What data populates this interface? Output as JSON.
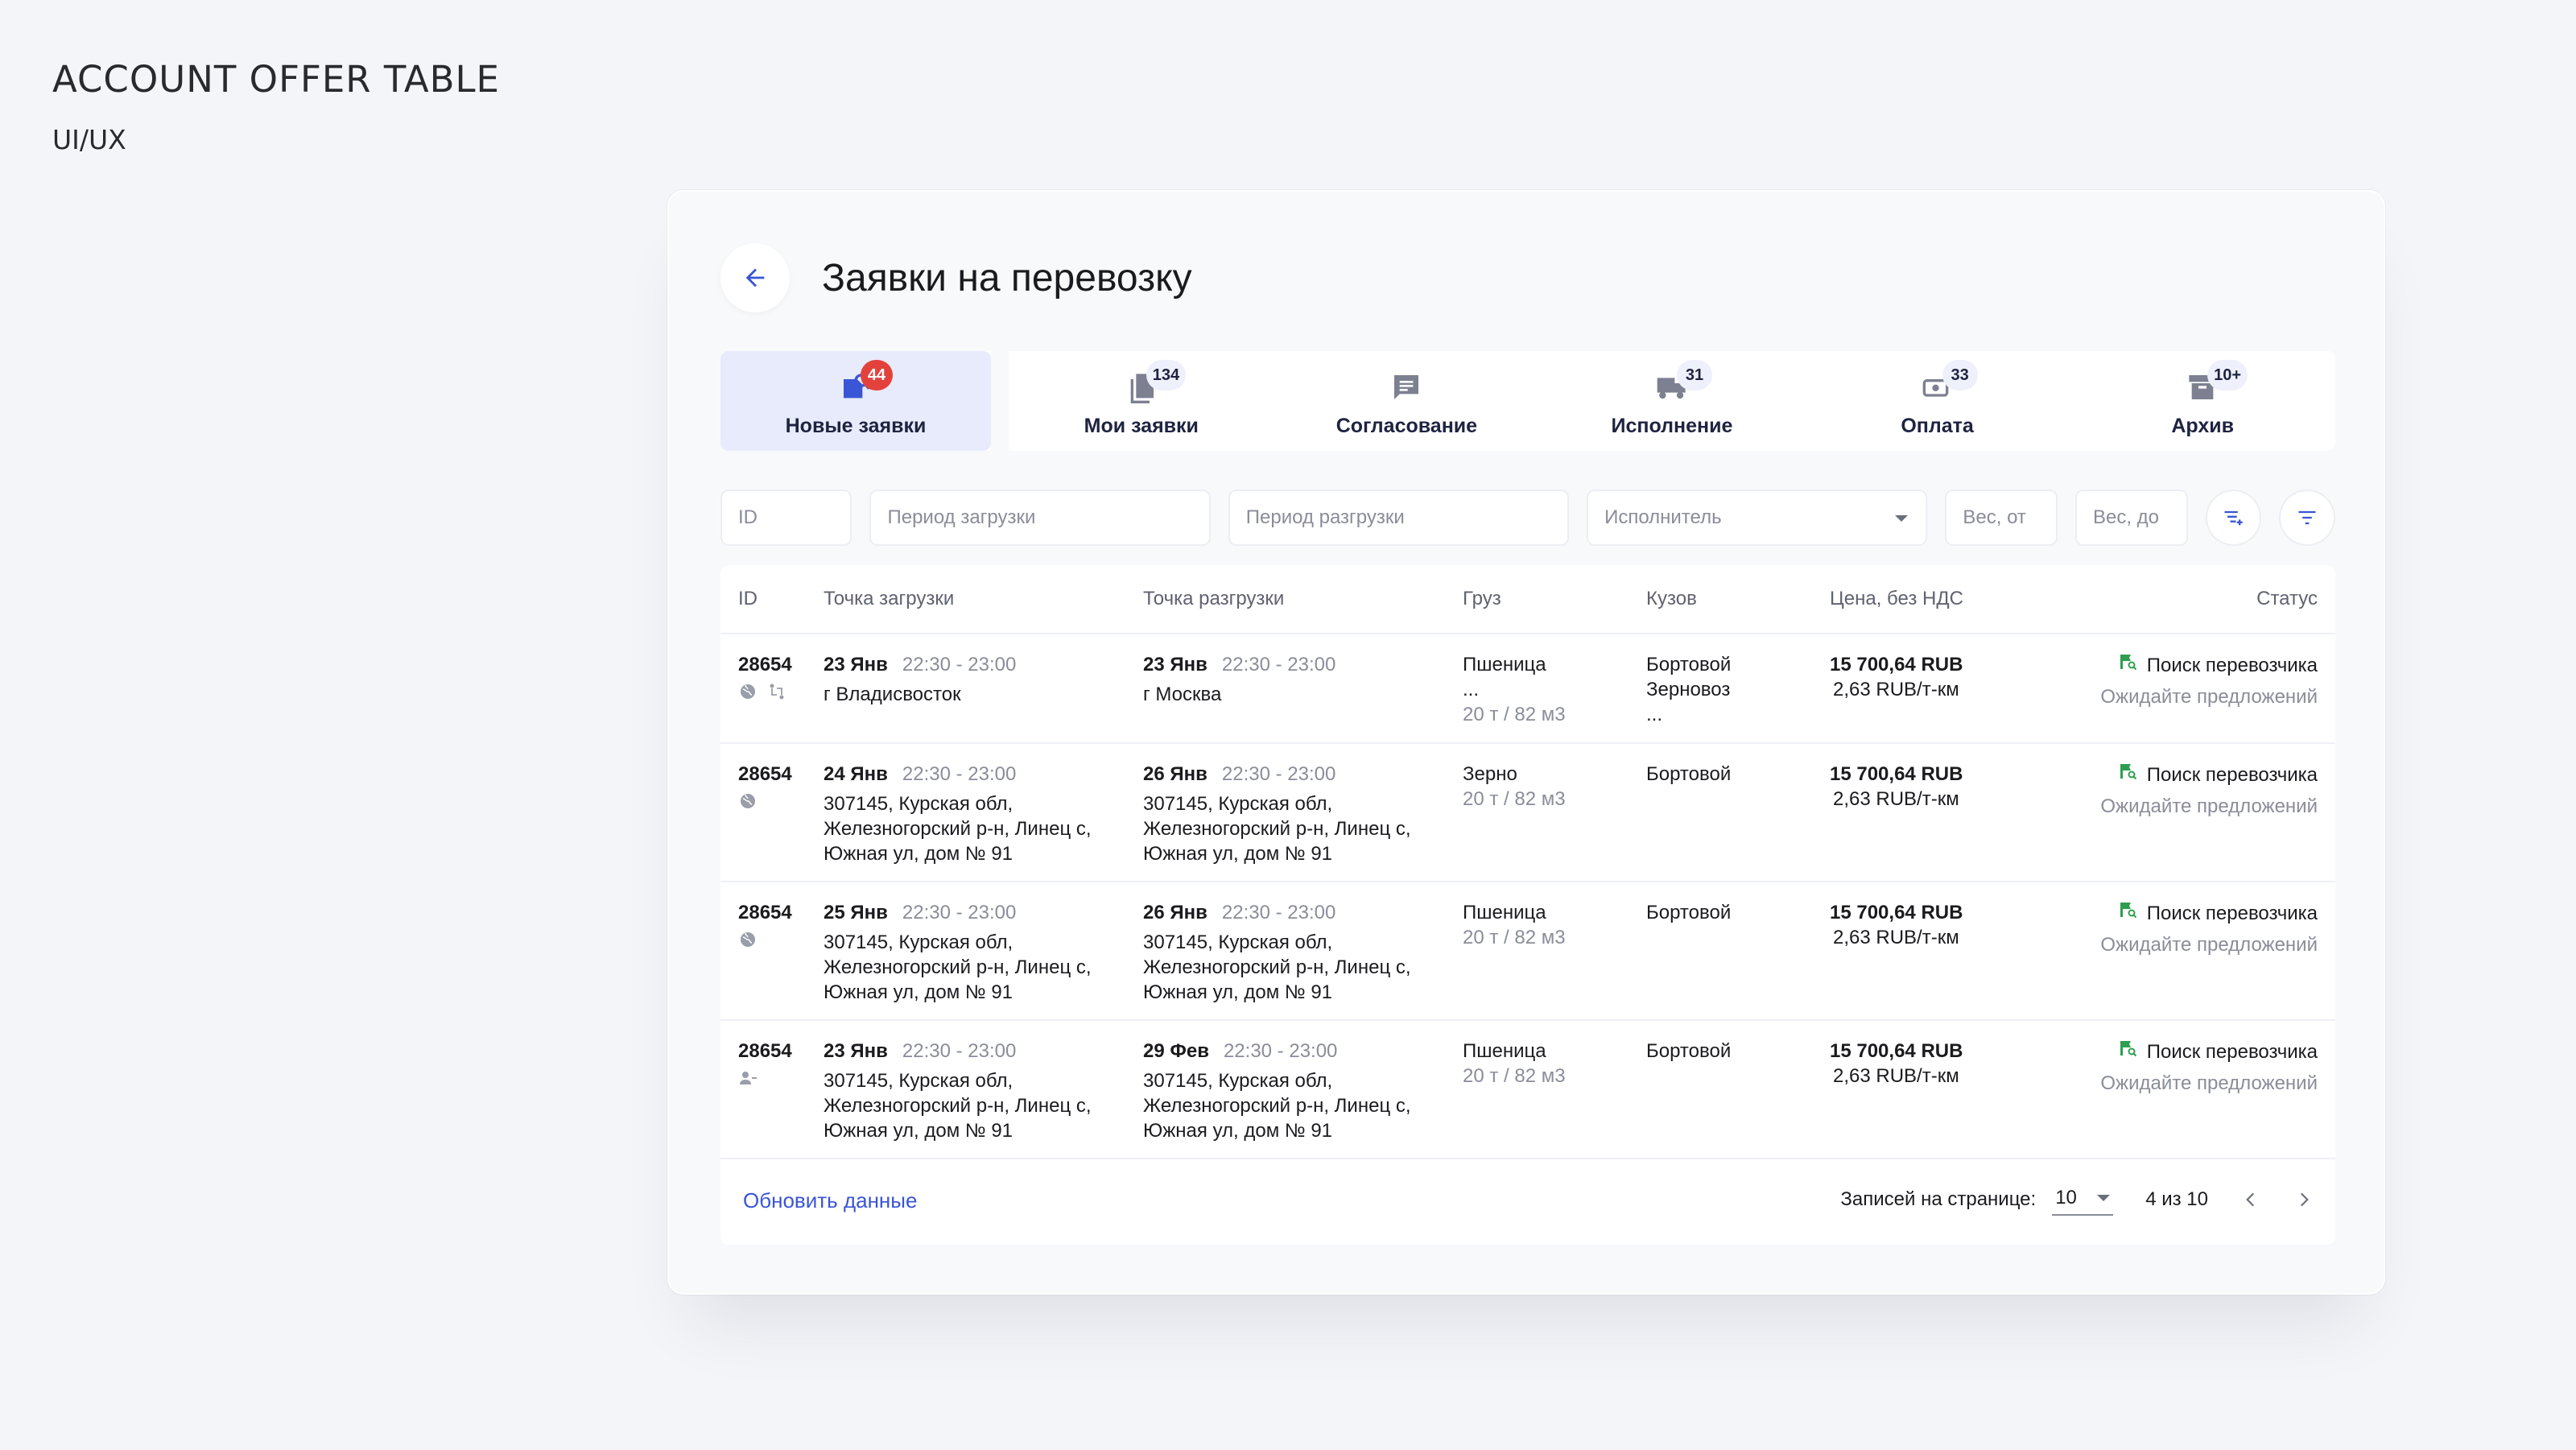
{
  "hero": {
    "title": "ACCOUNT OFFER TABLE",
    "subtitle": "UI/UX"
  },
  "header": {
    "title": "Заявки на перевозку"
  },
  "tabs": [
    {
      "label": "Новые заявки",
      "badge": "44",
      "icon": "search-doc-icon",
      "active": true
    },
    {
      "label": "Мои заявки",
      "badge": "134",
      "icon": "document-icon"
    },
    {
      "label": "Согласование",
      "badge": "",
      "icon": "chat-icon"
    },
    {
      "label": "Исполнение",
      "badge": "31",
      "icon": "truck-icon"
    },
    {
      "label": "Оплата",
      "badge": "33",
      "icon": "payment-icon"
    },
    {
      "label": "Архив",
      "badge": "10+",
      "icon": "archive-icon"
    }
  ],
  "filters": {
    "id": "ID",
    "load_period": "Период загрузки",
    "unload_period": "Период разгрузки",
    "executor": "Исполнитель",
    "weight_from": "Вес, от",
    "weight_to": "Вес, до"
  },
  "table": {
    "columns": [
      "ID",
      "Точка загрузки",
      "Точка разгрузки",
      "Груз",
      "Кузов",
      "Цена, без НДС",
      "Статус"
    ],
    "rows": [
      {
        "id": "28654",
        "load_date": "23 Янв",
        "load_time": "22:30 - 23:00",
        "load_addr": [
          "г Владисвосток"
        ],
        "unload_date": "23 Янв",
        "unload_time": "22:30 - 23:00",
        "unload_addr": [
          "г Москва"
        ],
        "cargo": "Пшеница",
        "cargo_extra": "...",
        "cargo_weight": "20 т / 82 м3",
        "body": [
          "Бортовой",
          "Зерновоз",
          "..."
        ],
        "price": "15 700,64 RUB",
        "price_km": "2,63 RUB/т-км",
        "status": "Поиск перевозчика",
        "status_hint": "Ожидайте предложений",
        "icons": [
          "globe-icon",
          "route-icon"
        ]
      },
      {
        "id": "28654",
        "load_date": "24 Янв",
        "load_time": "22:30 - 23:00",
        "load_addr": [
          "307145, Курская обл,",
          "Железногорский р-н, Линец с,",
          "Южная ул, дом № 91"
        ],
        "unload_date": "26 Янв",
        "unload_time": "22:30 - 23:00",
        "unload_addr": [
          "307145, Курская обл,",
          "Железногорский р-н, Линец с,",
          "Южная ул, дом № 91"
        ],
        "cargo": "Зерно",
        "cargo_extra": "",
        "cargo_weight": "20 т / 82 м3",
        "body": [
          "Бортовой"
        ],
        "price": "15 700,64 RUB",
        "price_km": "2,63 RUB/т-км",
        "status": "Поиск перевозчика",
        "status_hint": "Ожидайте предложений",
        "icons": [
          "globe-icon"
        ]
      },
      {
        "id": "28654",
        "load_date": "25 Янв",
        "load_time": "22:30 - 23:00",
        "load_addr": [
          "307145, Курская обл,",
          "Железногорский р-н, Линец с,",
          "Южная ул, дом № 91"
        ],
        "unload_date": "26 Янв",
        "unload_time": "22:30 - 23:00",
        "unload_addr": [
          "307145, Курская обл,",
          "Железногорский р-н, Линец с,",
          "Южная ул, дом № 91"
        ],
        "cargo": "Пшеница",
        "cargo_extra": "",
        "cargo_weight": "20 т / 82 м3",
        "body": [
          "Бортовой"
        ],
        "price": "15 700,64 RUB",
        "price_km": "2,63 RUB/т-км",
        "status": "Поиск перевозчика",
        "status_hint": "Ожидайте предложений",
        "icons": [
          "globe-icon"
        ]
      },
      {
        "id": "28654",
        "load_date": "23 Янв",
        "load_time": "22:30 - 23:00",
        "load_addr": [
          "307145, Курская обл,",
          "Железногорский р-н, Линец с,",
          "Южная ул, дом № 91"
        ],
        "unload_date": "29 Фев",
        "unload_time": "22:30 - 23:00",
        "unload_addr": [
          "307145, Курская обл,",
          "Железногорский р-н, Линец с,",
          "Южная ул, дом № 91"
        ],
        "cargo": "Пшеница",
        "cargo_extra": "",
        "cargo_weight": "20 т / 82 м3",
        "body": [
          "Бортовой"
        ],
        "price": "15 700,64 RUB",
        "price_km": "2,63 RUB/т-км",
        "status": "Поиск перевозчика",
        "status_hint": "Ожидайте предложений",
        "icons": [
          "person-remove-icon"
        ]
      }
    ]
  },
  "footer": {
    "refresh": "Обновить данные",
    "per_page_label": "Записей на странице:",
    "per_page_value": "10",
    "range": "4 из 10"
  },
  "colors": {
    "accent": "#3a55d6",
    "badge_red": "#e2423b",
    "status_green": "#2e9e4f",
    "active_tab_bg": "#e8ebfb"
  }
}
